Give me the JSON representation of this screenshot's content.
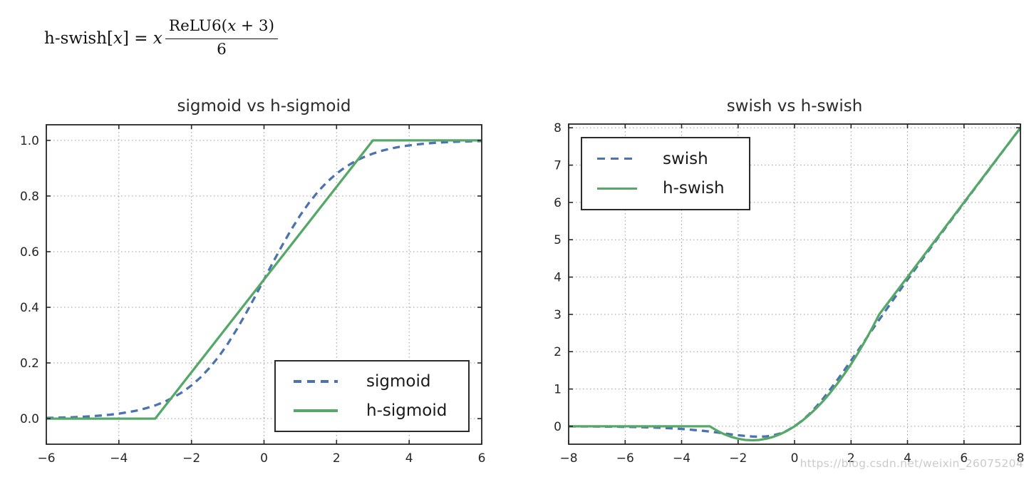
{
  "formula": {
    "lhs_name": "h-swish",
    "open_bracket": "[",
    "var": "x",
    "close_eq": "] = ",
    "coef": "x",
    "num_fn": "ReLU6(",
    "num_var": "x",
    "num_rest": " + 3)",
    "den": "6"
  },
  "watermark": {
    "text": "https://blog.csdn.net/weixin_26075204"
  },
  "chart_data": [
    {
      "type": "line",
      "title": "sigmoid vs h-sigmoid",
      "xlabel": "",
      "ylabel": "",
      "xlim": [
        -6,
        6
      ],
      "ylim": [
        -0.092,
        1.056
      ],
      "xticks": [
        -6,
        -4,
        -2,
        0,
        2,
        4,
        6
      ],
      "xtick_labels": [
        "−6",
        "−4",
        "−2",
        "0",
        "2",
        "4",
        "6"
      ],
      "yticks": [
        0.0,
        0.2,
        0.4,
        0.6,
        0.8,
        1.0
      ],
      "ytick_labels": [
        "0.0",
        "0.2",
        "0.4",
        "0.6",
        "0.8",
        "1.0"
      ],
      "grid": true,
      "legend_position": "lower right",
      "series": [
        {
          "name": "sigmoid",
          "color": "#4c72b0",
          "dash": true,
          "x": [
            -6,
            -5.75,
            -5.5,
            -5.25,
            -5,
            -4.75,
            -4.5,
            -4.25,
            -4,
            -3.75,
            -3.5,
            -3.25,
            -3,
            -2.75,
            -2.5,
            -2.25,
            -2,
            -1.75,
            -1.5,
            -1.25,
            -1,
            -0.75,
            -0.5,
            -0.25,
            0,
            0.25,
            0.5,
            0.75,
            1,
            1.25,
            1.5,
            1.75,
            2,
            2.25,
            2.5,
            2.75,
            3,
            3.25,
            3.5,
            3.75,
            4,
            4.25,
            4.5,
            4.75,
            5,
            5.25,
            5.5,
            5.75,
            6
          ],
          "y": [
            0.0025,
            0.0032,
            0.0041,
            0.0052,
            0.0067,
            0.0086,
            0.011,
            0.0141,
            0.018,
            0.023,
            0.0293,
            0.0373,
            0.0474,
            0.0601,
            0.0759,
            0.0953,
            0.1192,
            0.148,
            0.1824,
            0.2227,
            0.2689,
            0.3208,
            0.3775,
            0.4378,
            0.5,
            0.5622,
            0.6225,
            0.6792,
            0.7311,
            0.7773,
            0.8176,
            0.852,
            0.8808,
            0.9047,
            0.9241,
            0.9399,
            0.9526,
            0.9627,
            0.9707,
            0.977,
            0.982,
            0.9859,
            0.989,
            0.9914,
            0.9933,
            0.9948,
            0.9959,
            0.9968,
            0.9975
          ]
        },
        {
          "name": "h-sigmoid",
          "color": "#55a868",
          "dash": false,
          "x": [
            -6,
            -3,
            3,
            6
          ],
          "y": [
            0,
            0,
            1,
            1
          ]
        }
      ]
    },
    {
      "type": "line",
      "title": "swish vs h-swish",
      "xlabel": "",
      "ylabel": "",
      "xlim": [
        -8,
        8
      ],
      "ylim": [
        -0.48,
        8.1
      ],
      "xticks": [
        -8,
        -6,
        -4,
        -2,
        0,
        2,
        4,
        6,
        8
      ],
      "xtick_labels": [
        "−8",
        "−6",
        "−4",
        "−2",
        "0",
        "2",
        "4",
        "6",
        "8"
      ],
      "yticks": [
        0,
        1,
        2,
        3,
        4,
        5,
        6,
        7,
        8
      ],
      "ytick_labels": [
        "0",
        "1",
        "2",
        "3",
        "4",
        "5",
        "6",
        "7",
        "8"
      ],
      "grid": true,
      "legend_position": "upper left",
      "series": [
        {
          "name": "swish",
          "color": "#4c72b0",
          "dash": true,
          "x": [
            -8,
            -7.75,
            -7.5,
            -7.25,
            -7,
            -6.75,
            -6.5,
            -6.25,
            -6,
            -5.75,
            -5.5,
            -5.25,
            -5,
            -4.75,
            -4.5,
            -4.25,
            -4,
            -3.75,
            -3.5,
            -3.25,
            -3,
            -2.75,
            -2.5,
            -2.25,
            -2,
            -1.75,
            -1.5,
            -1.25,
            -1,
            -0.75,
            -0.5,
            -0.25,
            0,
            0.25,
            0.5,
            0.75,
            1,
            1.25,
            1.5,
            1.75,
            2,
            2.25,
            2.5,
            2.75,
            3,
            3.25,
            3.5,
            3.75,
            4,
            4.25,
            4.5,
            4.75,
            5,
            5.25,
            5.5,
            5.75,
            6,
            6.25,
            6.5,
            6.75,
            7,
            7.25,
            7.5,
            7.75,
            8
          ],
          "y": [
            -0.0027,
            -0.0033,
            -0.0041,
            -0.0051,
            -0.0064,
            -0.0079,
            -0.0098,
            -0.0121,
            -0.0148,
            -0.0182,
            -0.0224,
            -0.0274,
            -0.0335,
            -0.0407,
            -0.0494,
            -0.0598,
            -0.0719,
            -0.0862,
            -0.1026,
            -0.1213,
            -0.1423,
            -0.1652,
            -0.1896,
            -0.2145,
            -0.2384,
            -0.2591,
            -0.2736,
            -0.2784,
            -0.2689,
            -0.2406,
            -0.1888,
            -0.1095,
            0,
            0.1405,
            0.3112,
            0.5094,
            0.7311,
            0.9716,
            1.2264,
            1.4909,
            1.7616,
            2.0355,
            2.3104,
            2.5848,
            2.8577,
            3.1287,
            3.3974,
            3.6638,
            3.9281,
            4.1902,
            4.4506,
            4.7093,
            4.9665,
            5.2226,
            5.4776,
            5.7318,
            5.9852,
            6.2379,
            6.4902,
            6.7421,
            6.9936,
            7.2449,
            7.4959,
            7.7467,
            7.9973
          ]
        },
        {
          "name": "h-swish",
          "color": "#55a868",
          "dash": false,
          "x": [
            -8,
            -3,
            -2.75,
            -2.5,
            -2.25,
            -2,
            -1.75,
            -1.5,
            -1.25,
            -1,
            -0.75,
            -0.5,
            -0.25,
            0,
            0.25,
            0.5,
            0.75,
            1,
            1.25,
            1.5,
            1.75,
            2,
            2.25,
            2.5,
            2.75,
            3,
            8
          ],
          "y": [
            0,
            0,
            -0.1146,
            -0.2083,
            -0.2813,
            -0.3333,
            -0.3646,
            -0.375,
            -0.3646,
            -0.3333,
            -0.2813,
            -0.2083,
            -0.1146,
            0,
            0.1354,
            0.2917,
            0.4688,
            0.6667,
            0.8854,
            1.125,
            1.3854,
            1.6667,
            1.9688,
            2.2917,
            2.6354,
            3,
            8
          ]
        }
      ]
    }
  ]
}
